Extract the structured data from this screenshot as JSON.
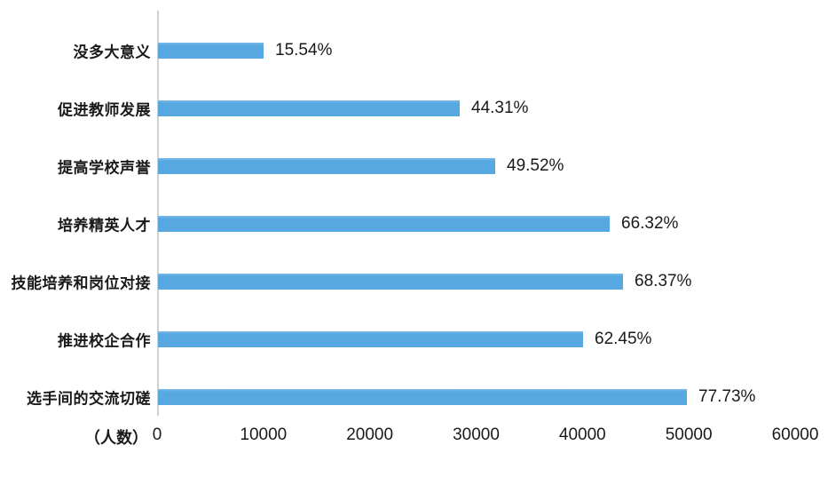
{
  "chart_data": {
    "type": "bar",
    "orientation": "horizontal",
    "title": "",
    "xlabel": "（人数）",
    "ylabel": "",
    "xlim": [
      0,
      60000
    ],
    "x_ticks": [
      "0",
      "10000",
      "20000",
      "30000",
      "40000",
      "50000",
      "60000"
    ],
    "x_tick_values": [
      0,
      10000,
      20000,
      30000,
      40000,
      50000,
      60000
    ],
    "grid": false,
    "legend": false,
    "bar_color": "#57a7e0",
    "axis_line_color": "#cdd2d6",
    "text_color": "#1a1a1a",
    "categories": [
      "没多大意义",
      "促进教师发展",
      "提高学校声誉",
      "培养精英人才",
      "技能培养和岗位对接",
      "推进校企合作",
      "选手间的交流切磋"
    ],
    "series": [
      {
        "name": "人数",
        "values": [
          9950,
          28350,
          31700,
          42450,
          43750,
          39950,
          49750
        ],
        "percent_labels": [
          "15.54%",
          "44.31%",
          "49.52%",
          "66.32%",
          "68.37%",
          "62.45%",
          "77.73%"
        ]
      }
    ]
  },
  "layout_note": ""
}
